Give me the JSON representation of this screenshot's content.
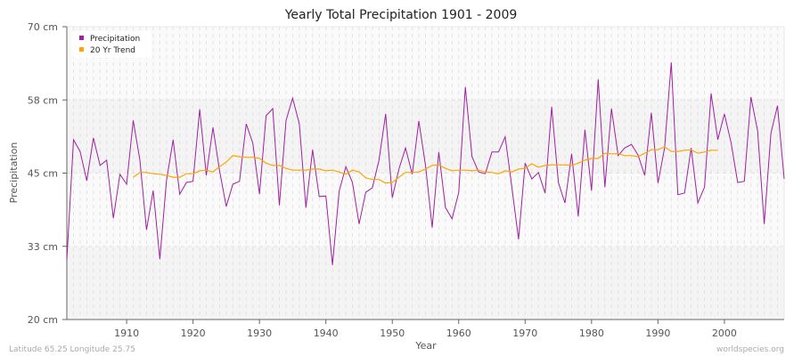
{
  "chart_data": {
    "type": "line",
    "title": "Yearly Total Precipitation 1901 - 2009",
    "xlabel": "Year",
    "ylabel": "Precipitation",
    "xlim": [
      1901,
      2009
    ],
    "ylim": [
      20,
      70
    ],
    "x_ticks": [
      1910,
      1920,
      1930,
      1940,
      1950,
      1960,
      1970,
      1980,
      1990,
      2000
    ],
    "y_ticks": [
      {
        "value": 20,
        "label": "20 cm"
      },
      {
        "value": 32.5,
        "label": "33 cm"
      },
      {
        "value": 45,
        "label": "45 cm"
      },
      {
        "value": 57.5,
        "label": "58 cm"
      },
      {
        "value": 70,
        "label": "70 cm"
      }
    ],
    "grid": true,
    "legend_position": "top-left",
    "series": [
      {
        "name": "Precipitation",
        "color": "#a020a0",
        "x_start": 1901,
        "values": [
          30.2,
          50.7,
          48.7,
          43.7,
          51.0,
          46.3,
          47.2,
          37.3,
          44.8,
          43.1,
          54.0,
          47.2,
          35.3,
          42.0,
          30.3,
          43.7,
          50.7,
          41.4,
          43.4,
          43.6,
          55.9,
          44.6,
          52.8,
          45.4,
          39.3,
          43.1,
          43.6,
          53.4,
          50.1,
          41.4,
          54.8,
          56.0,
          39.5,
          54.0,
          57.8,
          53.4,
          39.1,
          49.0,
          41.0,
          41.1,
          29.3,
          41.9,
          46.1,
          43.4,
          36.3,
          41.7,
          42.5,
          47.2,
          55.1,
          40.8,
          45.7,
          49.3,
          44.8,
          53.9,
          46.3,
          35.7,
          48.6,
          39.1,
          37.2,
          41.7,
          59.7,
          47.8,
          45.2,
          44.9,
          48.6,
          48.6,
          51.2,
          42.6,
          33.7,
          46.7,
          44.0,
          45.1,
          41.6,
          56.3,
          43.4,
          39.9,
          48.3,
          37.6,
          52.4,
          42.0,
          61.0,
          42.6,
          56.0,
          48.0,
          49.3,
          49.9,
          48.1,
          44.6,
          55.3,
          43.3,
          49.3,
          63.9,
          41.3,
          41.6,
          49.3,
          39.9,
          42.6,
          58.6,
          50.7,
          55.1,
          50.2,
          43.4,
          43.6,
          58.0,
          52.2,
          36.3,
          51.8,
          56.5,
          44.0
        ]
      },
      {
        "name": "20 Yr Trend",
        "color": "#ffa500",
        "x_start": 1911,
        "values": [
          44.3,
          45.1,
          45.1,
          44.9,
          44.8,
          44.6,
          44.3,
          44.3,
          44.9,
          44.9,
          45.4,
          45.5,
          45.2,
          46.1,
          46.9,
          48.0,
          47.8,
          47.7,
          47.7,
          47.5,
          46.7,
          46.3,
          46.3,
          45.8,
          45.5,
          45.5,
          45.5,
          45.7,
          45.7,
          45.4,
          45.5,
          45.2,
          44.8,
          45.5,
          45.2,
          44.2,
          43.9,
          43.9,
          43.3,
          43.4,
          44.3,
          45.1,
          45.1,
          45.2,
          45.7,
          46.3,
          46.4,
          45.8,
          45.4,
          45.5,
          45.5,
          45.4,
          45.5,
          45.2,
          45.1,
          44.9,
          45.4,
          45.2,
          45.7,
          45.8,
          46.6,
          46.0,
          46.3,
          46.4,
          46.4,
          46.4,
          46.3,
          46.7,
          47.2,
          47.5,
          47.5,
          48.4,
          48.3,
          48.3,
          48.0,
          48.0,
          47.8,
          48.4,
          49.0,
          49.0,
          49.5,
          48.7,
          48.7,
          48.9,
          49.0,
          48.4,
          48.6,
          48.9,
          48.9
        ]
      }
    ]
  },
  "footer": {
    "location": "Latitude 65.25 Longitude 25.75",
    "source": "worldspecies.org"
  }
}
